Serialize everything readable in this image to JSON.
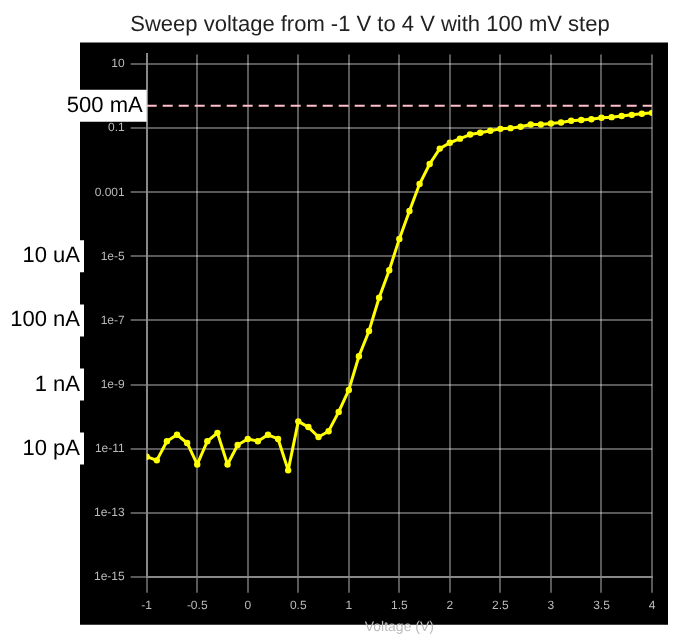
{
  "chart_data": {
    "type": "line",
    "title": "Sweep voltage from -1 V to 4 V with 100 mV step",
    "xlabel": "Voltage (V)",
    "x": [
      -1,
      -0.9,
      -0.8,
      -0.7,
      -0.6,
      -0.5,
      -0.4,
      -0.3,
      -0.2,
      -0.1,
      0,
      0.1,
      0.2,
      0.3,
      0.4,
      0.5,
      0.6,
      0.7,
      0.8,
      0.9,
      1,
      1.1,
      1.2,
      1.3,
      1.4,
      1.5,
      1.6,
      1.7,
      1.8,
      1.9,
      2,
      2.1,
      2.2,
      2.3,
      2.4,
      2.5,
      2.6,
      2.7,
      2.8,
      2.9,
      3,
      3.1,
      3.2,
      3.3,
      3.4,
      3.5,
      3.6,
      3.7,
      3.8,
      3.9,
      4
    ],
    "series": [
      {
        "color": "#ffff00",
        "values": [
          5.6e-12,
          4.3e-12,
          1.7e-11,
          2.7e-11,
          1.5e-11,
          3.2e-12,
          1.7e-11,
          3.1e-11,
          3.2e-12,
          1.3e-11,
          2e-11,
          1.7e-11,
          2.7e-11,
          2e-11,
          2.1e-12,
          7.1e-11,
          4.7e-11,
          2.3e-11,
          3.5e-11,
          1.4e-10,
          6.8e-10,
          7.6e-09,
          4.7e-08,
          5.1e-07,
          3.7e-06,
          3.5e-05,
          0.00026,
          0.0018,
          0.0076,
          0.023,
          0.035,
          0.047,
          0.063,
          0.072,
          0.083,
          0.095,
          0.1,
          0.11,
          0.13,
          0.13,
          0.14,
          0.15,
          0.17,
          0.18,
          0.19,
          0.21,
          0.22,
          0.24,
          0.26,
          0.28,
          0.3
        ]
      }
    ],
    "xlim": [
      -1,
      4
    ],
    "xticks": [
      -1,
      -0.5,
      0,
      0.5,
      1,
      1.5,
      2,
      2.5,
      3,
      3.5,
      4
    ],
    "ylim": [
      1e-15,
      20
    ],
    "yticks": [
      10,
      0.1,
      0.001,
      {
        "value": 1e-05,
        "label": "1e-5"
      },
      {
        "value": 1e-07,
        "label": "1e-7"
      },
      {
        "value": 1e-09,
        "label": "1e-9"
      },
      {
        "value": 1e-11,
        "label": "1e-11"
      },
      {
        "value": 1e-13,
        "label": "1e-13"
      },
      {
        "value": 1e-15,
        "label": "1e-15"
      }
    ],
    "annotations": [
      "10 uA",
      "100 nA",
      "1 nA",
      "10 pA"
    ],
    "ref_lines": [
      {
        "axis": "y",
        "value": 0.5,
        "label": "500 mA",
        "color": "#ffc0cb",
        "line_style": "dashed"
      }
    ],
    "log": "y",
    "grid": true,
    "marker": "circle",
    "line_style": "solid",
    "legend": false
  }
}
